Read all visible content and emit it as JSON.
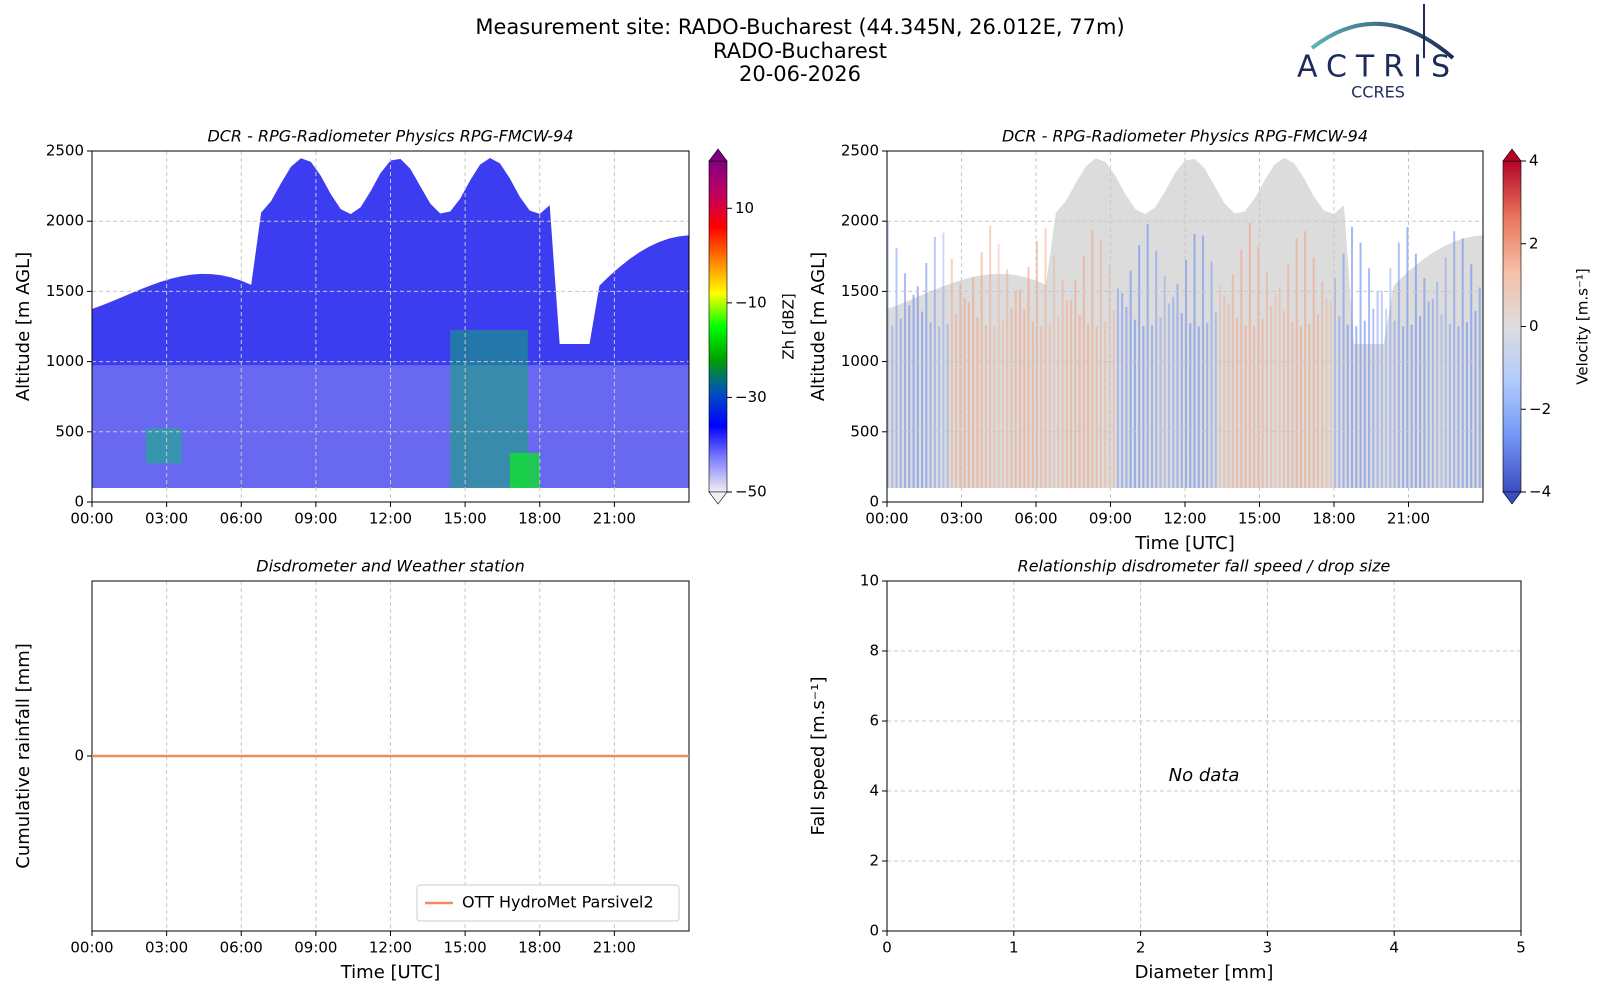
{
  "header": {
    "title": "Measurement site: RADO-Bucharest (44.345N, 26.012E, 77m)",
    "subtitle": "RADO-Bucharest",
    "date": "20-06-2026",
    "logo": "ACTRIS",
    "logo_sub": "CCRES"
  },
  "chart_data": [
    {
      "type": "heatmap",
      "title": "DCR - RPG-Radiometer Physics RPG-FMCW-94",
      "ylabel": "Altitude [m AGL]",
      "xlim": [
        0,
        24
      ],
      "xticks": [
        {
          "value": 0,
          "label": "00:00"
        },
        {
          "value": 3,
          "label": "03:00"
        },
        {
          "value": 6,
          "label": "06:00"
        },
        {
          "value": 9,
          "label": "09:00"
        },
        {
          "value": 12,
          "label": "12:00"
        },
        {
          "value": 15,
          "label": "15:00"
        },
        {
          "value": 18,
          "label": "18:00"
        },
        {
          "value": 21,
          "label": "21:00"
        }
      ],
      "ylim": [
        0,
        2500
      ],
      "yticks": [
        0,
        500,
        1000,
        1500,
        2000,
        2500
      ],
      "grid": true,
      "colorbar": {
        "label": "Zh [dBZ]",
        "lim": [
          -50,
          20
        ],
        "ticks": [
          {
            "value": -50,
            "label": "−50"
          },
          {
            "value": -30,
            "label": "−30"
          },
          {
            "value": -10,
            "label": "−10"
          },
          10
        ],
        "colormap": [
          "#f0f0f0",
          "#8080ff",
          "#0000ff",
          "#0050c0",
          "#00a000",
          "#00ff00",
          "#ffff00",
          "#ff8000",
          "#ff0000",
          "#c00060",
          "#800080"
        ]
      }
    },
    {
      "type": "heatmap",
      "title": "DCR - RPG-Radiometer Physics RPG-FMCW-94",
      "ylabel": "Altitude [m AGL]",
      "xlabel": "Time [UTC]",
      "xlim": [
        0,
        24
      ],
      "xticks": [
        {
          "value": 0,
          "label": "00:00"
        },
        {
          "value": 3,
          "label": "03:00"
        },
        {
          "value": 6,
          "label": "06:00"
        },
        {
          "value": 9,
          "label": "09:00"
        },
        {
          "value": 12,
          "label": "12:00"
        },
        {
          "value": 15,
          "label": "15:00"
        },
        {
          "value": 18,
          "label": "18:00"
        },
        {
          "value": 21,
          "label": "21:00"
        }
      ],
      "ylim": [
        0,
        2500
      ],
      "yticks": [
        0,
        500,
        1000,
        1500,
        2000,
        2500
      ],
      "grid": true,
      "colorbar": {
        "label": "Velocity [m.s⁻¹]",
        "lim": [
          -4,
          4
        ],
        "ticks": [
          {
            "value": -4,
            "label": "−4"
          },
          {
            "value": -2,
            "label": "−2"
          },
          0,
          2,
          4
        ],
        "colormap": [
          "#3b4cc0",
          "#7396f5",
          "#b0cbfc",
          "#dddddd",
          "#f6bfa6",
          "#e7745b",
          "#b40426"
        ]
      }
    },
    {
      "type": "line",
      "title": "Disdrometer and Weather station",
      "ylabel": "Cumulative rainfall [mm]",
      "xlabel": "Time [UTC]",
      "xlim": [
        0,
        24
      ],
      "xticks": [
        {
          "value": 0,
          "label": "00:00"
        },
        {
          "value": 3,
          "label": "03:00"
        },
        {
          "value": 6,
          "label": "06:00"
        },
        {
          "value": 9,
          "label": "09:00"
        },
        {
          "value": 12,
          "label": "12:00"
        },
        {
          "value": 15,
          "label": "15:00"
        },
        {
          "value": 18,
          "label": "18:00"
        },
        {
          "value": 21,
          "label": "21:00"
        }
      ],
      "ylim": [
        -1,
        1
      ],
      "yticks": [
        0
      ],
      "grid": true,
      "legend": "lower right",
      "series": [
        {
          "name": "OTT HydroMet Parsivel2",
          "color": "#f08c5c",
          "x": [
            0,
            24
          ],
          "values": [
            0,
            0
          ]
        }
      ]
    },
    {
      "type": "scatter",
      "title": "Relationship disdrometer fall speed / drop size",
      "ylabel": "Fall speed [m.s⁻¹]",
      "xlabel": "Diameter [mm]",
      "xlim": [
        0,
        5
      ],
      "xticks": [
        0,
        1,
        2,
        3,
        4,
        5
      ],
      "ylim": [
        0,
        10
      ],
      "yticks": [
        0,
        2,
        4,
        6,
        8,
        10
      ],
      "grid": true,
      "annotation": "No data"
    }
  ]
}
